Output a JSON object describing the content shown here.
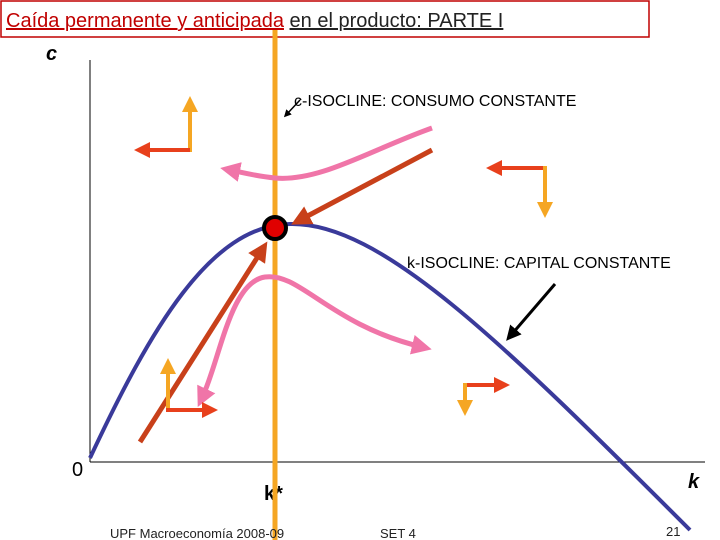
{
  "title": {
    "highlight": "Caída permanente y anticipada",
    "rest": "en el producto: PARTE I"
  },
  "axes": {
    "y_label": "c",
    "origin": "0",
    "x_label": "k",
    "k_star": "k*"
  },
  "labels": {
    "c_isocline": "c-ISOCLINE: CONSUMO CONSTANTE",
    "k_isocline": "k-ISOCLINE: CAPITAL CONSTANTE"
  },
  "footer": {
    "left": "UPF Macroeconomía 2008-09",
    "center": "SET 4",
    "page": "21"
  }
}
